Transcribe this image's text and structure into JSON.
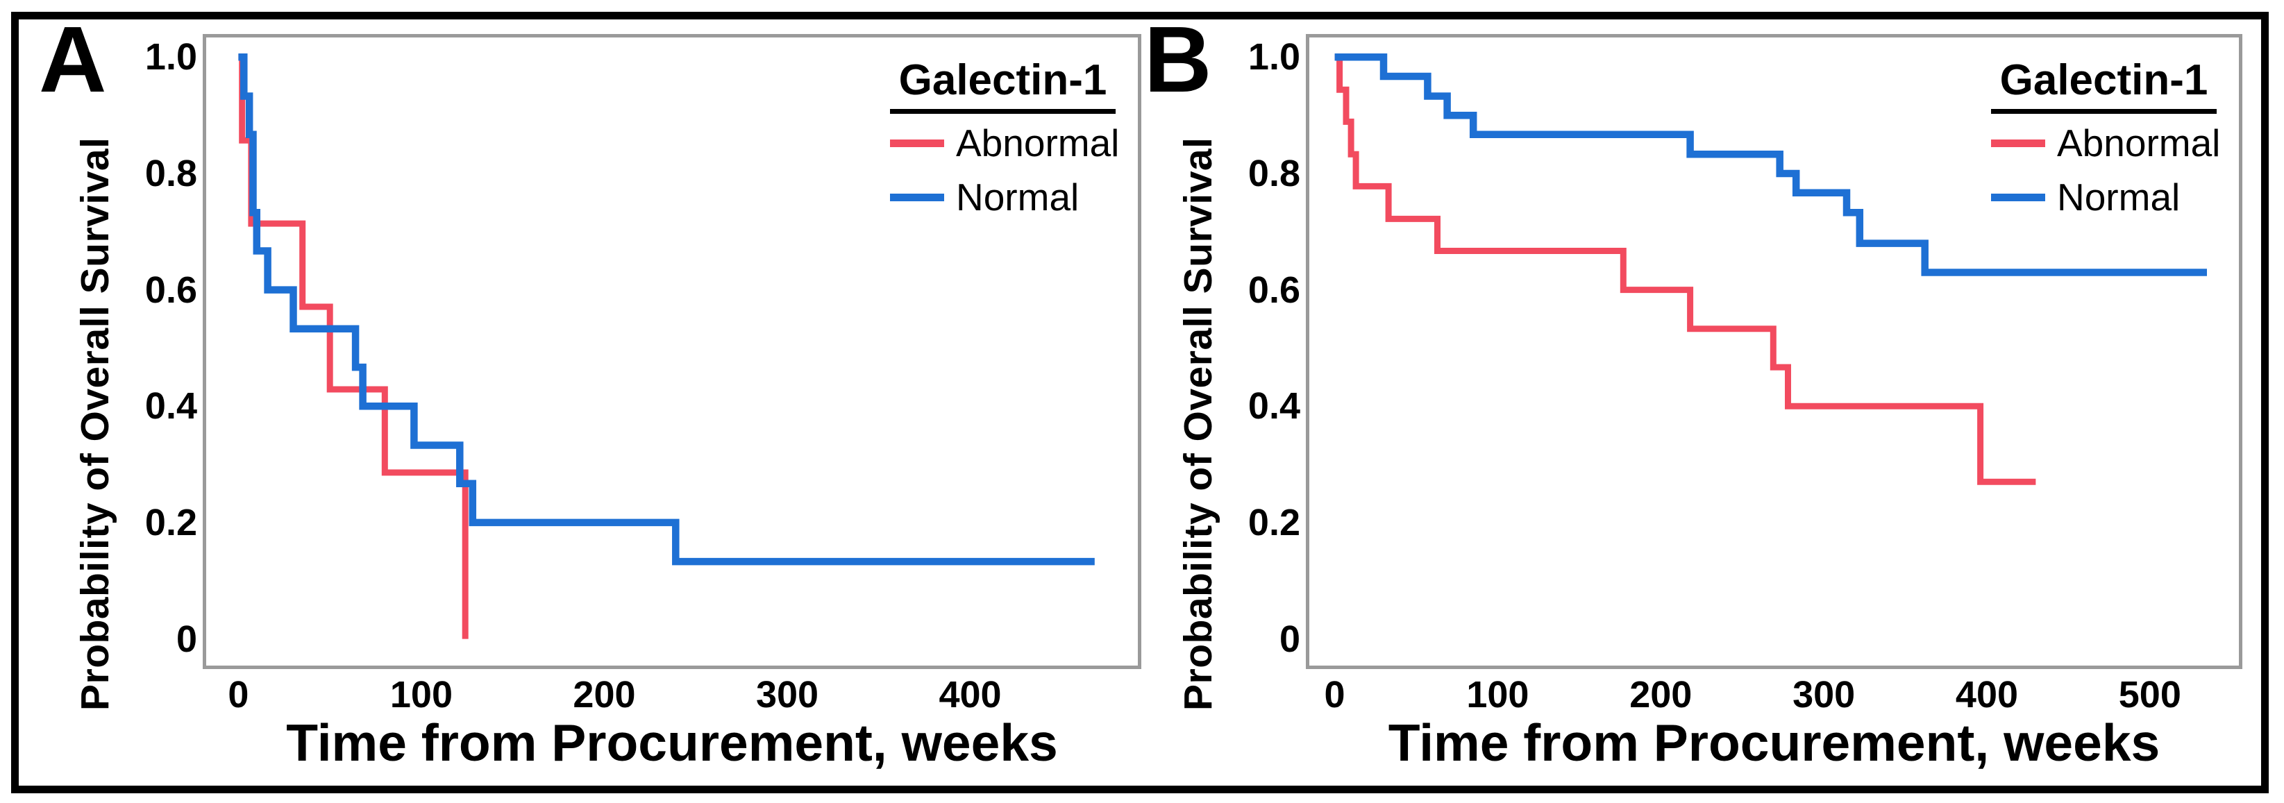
{
  "figure": {
    "background": "#ffffff",
    "frame_color": "#000000",
    "plot_border_color": "#9a9a9a",
    "text_color": "#000000"
  },
  "legend": {
    "title": "Galectin-1",
    "items": [
      {
        "label": "Abnormal",
        "color": "#f24b5f"
      },
      {
        "label": "Normal",
        "color": "#1e70d4"
      }
    ]
  },
  "chart_data": [
    {
      "type": "line",
      "style": "kaplan-meier-step",
      "panel_label": "A",
      "xlabel": "Time from Procurement, weeks",
      "ylabel": "Probability of Overall Survival",
      "x_ticks": [
        0,
        100,
        200,
        300,
        400
      ],
      "x_tick_labels": [
        "0",
        "100",
        "200",
        "300",
        "400"
      ],
      "y_ticks": [
        1.0,
        0.8,
        0.6,
        0.4,
        0.2,
        0
      ],
      "y_tick_labels": [
        "1.0",
        "0.8",
        "0.6",
        "0.4",
        "0.2",
        "0"
      ],
      "xlim": [
        -18,
        492
      ],
      "ylim": [
        -0.047,
        1.035
      ],
      "grid": false,
      "legend_position": "top-right",
      "series": [
        {
          "name": "Abnormal",
          "color": "#f24b5f",
          "steps": [
            [
              0,
              1.0
            ],
            [
              2,
              0.857
            ],
            [
              7,
              0.714
            ],
            [
              35,
              0.571
            ],
            [
              50,
              0.429
            ],
            [
              80,
              0.286
            ],
            [
              124,
              0
            ]
          ],
          "end": 124
        },
        {
          "name": "Normal",
          "color": "#1e70d4",
          "steps": [
            [
              0,
              1.0
            ],
            [
              3,
              0.933
            ],
            [
              6,
              0.867
            ],
            [
              8,
              0.733
            ],
            [
              10,
              0.667
            ],
            [
              16,
              0.6
            ],
            [
              30,
              0.533
            ],
            [
              64,
              0.467
            ],
            [
              68,
              0.4
            ],
            [
              96,
              0.333
            ],
            [
              121,
              0.267
            ],
            [
              128,
              0.2
            ],
            [
              239,
              0.133
            ]
          ],
          "end": 468
        }
      ]
    },
    {
      "type": "line",
      "style": "kaplan-meier-step",
      "panel_label": "B",
      "xlabel": "Time from Procurement, weeks",
      "ylabel": "Probability of Overall Survival",
      "x_ticks": [
        0,
        100,
        200,
        300,
        400,
        500
      ],
      "x_tick_labels": [
        "0",
        "100",
        "200",
        "300",
        "400",
        "500"
      ],
      "y_ticks": [
        1.0,
        0.8,
        0.6,
        0.4,
        0.2,
        0
      ],
      "y_tick_labels": [
        "1.0",
        "0.8",
        "0.6",
        "0.4",
        "0.2",
        "0"
      ],
      "xlim": [
        -16,
        555
      ],
      "ylim": [
        -0.047,
        1.035
      ],
      "grid": false,
      "legend_position": "top-right",
      "series": [
        {
          "name": "Abnormal",
          "color": "#f24b5f",
          "steps": [
            [
              0,
              1.0
            ],
            [
              3,
              0.944
            ],
            [
              7,
              0.889
            ],
            [
              10,
              0.833
            ],
            [
              13,
              0.778
            ],
            [
              33,
              0.722
            ],
            [
              63,
              0.667
            ],
            [
              177,
              0.6
            ],
            [
              218,
              0.533
            ],
            [
              269,
              0.467
            ],
            [
              278,
              0.4
            ],
            [
              396,
              0.27
            ]
          ],
          "end": 430
        },
        {
          "name": "Normal",
          "color": "#1e70d4",
          "steps": [
            [
              0,
              1.0
            ],
            [
              30,
              0.967
            ],
            [
              57,
              0.933
            ],
            [
              69,
              0.9
            ],
            [
              85,
              0.867
            ],
            [
              218,
              0.833
            ],
            [
              273,
              0.8
            ],
            [
              283,
              0.767
            ],
            [
              314,
              0.733
            ],
            [
              322,
              0.68
            ],
            [
              362,
              0.63
            ]
          ],
          "end": 535
        }
      ]
    }
  ]
}
